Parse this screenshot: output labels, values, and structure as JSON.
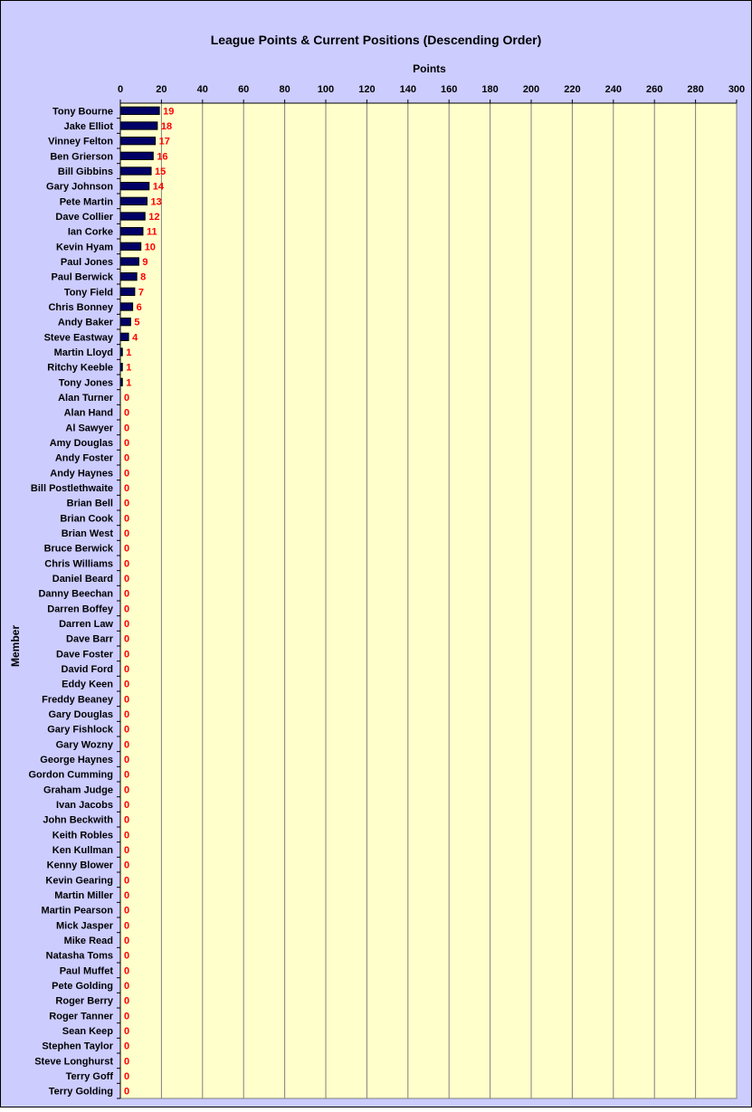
{
  "chart_data": {
    "type": "bar",
    "orientation": "horizontal",
    "title": "League Points & Current Positions (Descending Order)",
    "xlabel": "Points",
    "ylabel": "Member",
    "xlim": [
      0,
      300
    ],
    "xticks": [
      0,
      20,
      40,
      60,
      80,
      100,
      120,
      140,
      160,
      180,
      200,
      220,
      240,
      260,
      280,
      300
    ],
    "grid": "vertical",
    "data_labels": true,
    "categories": [
      "Tony Bourne",
      "Jake Elliot",
      "Vinney Felton",
      "Ben Grierson",
      "Bill Gibbins",
      "Gary Johnson",
      "Pete Martin",
      "Dave Collier",
      "Ian Corke",
      "Kevin Hyam",
      "Paul Jones",
      "Paul Berwick",
      "Tony Field",
      "Chris Bonney",
      "Andy Baker",
      "Steve Eastway",
      "Martin Lloyd",
      "Ritchy Keeble",
      "Tony Jones",
      "Alan Turner",
      "Alan Hand",
      "Al Sawyer",
      "Amy Douglas",
      "Andy Foster",
      "Andy Haynes",
      "Bill Postlethwaite",
      "Brian Bell",
      "Brian Cook",
      "Brian West",
      "Bruce Berwick",
      "Chris Williams",
      "Daniel Beard",
      "Danny Beechan",
      "Darren Boffey",
      "Darren Law",
      "Dave Barr",
      "Dave Foster",
      "David Ford",
      "Eddy Keen",
      "Freddy Beaney",
      "Gary Douglas",
      "Gary Fishlock",
      "Gary Wozny",
      "George Haynes",
      "Gordon Cumming",
      "Graham Judge",
      "Ivan Jacobs",
      "John Beckwith",
      "Keith Robles",
      "Ken Kullman",
      "Kenny Blower",
      "Kevin Gearing",
      "Martin Miller",
      "Martin Pearson",
      "Mick Jasper",
      "Mike Read",
      "Natasha Toms",
      "Paul Muffet",
      "Pete Golding",
      "Roger Berry",
      "Roger Tanner",
      "Sean Keep",
      "Stephen Taylor",
      "Steve Longhurst",
      "Terry Goff",
      "Terry Golding"
    ],
    "values": [
      19,
      18,
      17,
      16,
      15,
      14,
      13,
      12,
      11,
      10,
      9,
      8,
      7,
      6,
      5,
      4,
      1,
      1,
      1,
      0,
      0,
      0,
      0,
      0,
      0,
      0,
      0,
      0,
      0,
      0,
      0,
      0,
      0,
      0,
      0,
      0,
      0,
      0,
      0,
      0,
      0,
      0,
      0,
      0,
      0,
      0,
      0,
      0,
      0,
      0,
      0,
      0,
      0,
      0,
      0,
      0,
      0,
      0,
      0,
      0,
      0,
      0,
      0,
      0,
      0,
      0
    ],
    "colors": {
      "chart_background": "#ccccff",
      "plot_background": "#ffffcc",
      "bar_fill": "#000066",
      "data_label": "#ff0000",
      "gridline": "#808080"
    }
  }
}
